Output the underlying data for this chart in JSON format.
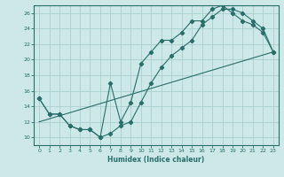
{
  "xlabel": "Humidex (Indice chaleur)",
  "ylabel": "",
  "bg_color": "#cce8e8",
  "line_color": "#2a6e6a",
  "grid_color": "#aacece",
  "xlim": [
    -0.5,
    23.5
  ],
  "ylim": [
    9,
    27
  ],
  "xticks": [
    0,
    1,
    2,
    3,
    4,
    5,
    6,
    7,
    8,
    9,
    10,
    11,
    12,
    13,
    14,
    15,
    16,
    17,
    18,
    19,
    20,
    21,
    22,
    23
  ],
  "yticks": [
    10,
    12,
    14,
    16,
    18,
    20,
    22,
    24,
    26
  ],
  "line1_x": [
    0,
    1,
    2,
    3,
    4,
    5,
    6,
    7,
    8,
    9,
    10,
    11,
    12,
    13,
    14,
    15,
    16,
    17,
    18,
    19,
    20,
    21,
    22,
    23
  ],
  "line1_y": [
    15.0,
    13.0,
    13.0,
    11.5,
    11.0,
    11.0,
    10.0,
    10.5,
    11.5,
    12.0,
    14.5,
    17.0,
    19.0,
    20.5,
    21.5,
    22.5,
    24.5,
    25.5,
    26.5,
    26.5,
    26.0,
    25.0,
    24.0,
    21.0
  ],
  "line2_x": [
    0,
    1,
    2,
    3,
    4,
    5,
    6,
    7,
    8,
    9,
    10,
    11,
    12,
    13,
    14,
    15,
    16,
    17,
    18,
    19,
    20,
    21,
    22,
    23
  ],
  "line2_y": [
    15.0,
    13.0,
    13.0,
    11.5,
    11.0,
    11.0,
    10.0,
    17.0,
    12.0,
    14.5,
    19.5,
    21.0,
    22.5,
    22.5,
    23.5,
    25.0,
    25.0,
    26.5,
    27.0,
    26.0,
    25.0,
    24.5,
    23.5,
    21.0
  ],
  "line3_x": [
    0,
    23
  ],
  "line3_y": [
    12.0,
    21.0
  ]
}
